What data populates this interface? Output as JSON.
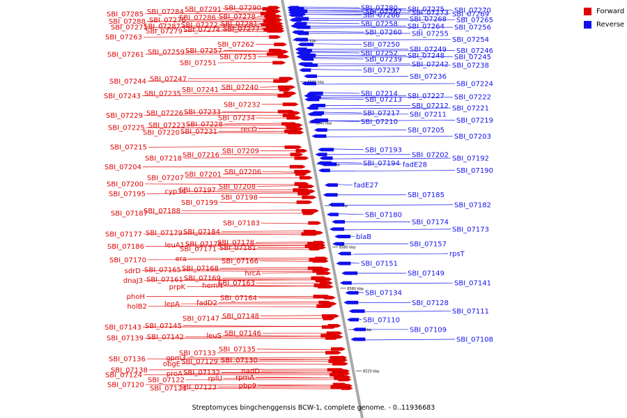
{
  "caption": "Streptomyces bingchenggensis BCW-1, complete genome. - 0..11936683",
  "legend": [
    {
      "label": "Forward",
      "color": "#e00000"
    },
    {
      "label": "Reverse",
      "color": "#1010ee"
    }
  ],
  "colors": {
    "forward": "#e00000",
    "reverse": "#1010ee",
    "axis": "#a8a8a8",
    "text": "#000000"
  },
  "scale_ticks": [
    "8680 kbp",
    "8660 kbp",
    "8640 kbp",
    "8620 kbp",
    "8600 kbp",
    "8580 kbp",
    "8560 kbp",
    "8540 kbp",
    "8520 kbp"
  ],
  "forward_genes": [
    [
      "SBI_07290",
      4
    ],
    [
      "SBI_07291",
      5
    ],
    [
      "SBI_07284",
      7
    ],
    [
      "SBI_07285",
      9
    ],
    [
      "SBI_07278",
      11
    ],
    [
      "SBI_07286",
      12
    ],
    [
      "SBI_07276",
      14
    ],
    [
      "SBI_07288",
      15
    ],
    [
      "SBI_07281",
      17
    ],
    [
      "SBI_07272",
      18
    ],
    [
      "SBI_07287",
      19
    ],
    [
      "SBI_07271",
      20
    ],
    [
      "SBI_07277",
      21
    ],
    [
      "SBI_07274",
      22
    ],
    [
      "SBI_07279",
      23
    ],
    [
      "SBI_07263",
      28
    ],
    [
      "SBI_07262",
      34
    ],
    [
      "SBI_07257",
      39
    ],
    [
      "SBI_07259",
      40
    ],
    [
      "SBI_07261",
      42
    ],
    [
      "SBI_07253",
      44
    ],
    [
      "SBI_07251",
      49
    ],
    [
      "SBI_07247",
      62
    ],
    [
      "SBI_07244",
      64
    ],
    [
      "SBI_07240",
      69
    ],
    [
      "SBI_07241",
      71
    ],
    [
      "SBI_07235",
      74
    ],
    [
      "SBI_07243",
      76
    ],
    [
      "SBI_07232",
      83
    ],
    [
      "SBI_07233",
      89
    ],
    [
      "SBI_07226",
      90
    ],
    [
      "SBI_07229",
      92
    ],
    [
      "SBI_07234",
      94
    ],
    [
      "SBI_07228",
      99
    ],
    [
      "SBI_07223",
      100
    ],
    [
      "SBI_07225",
      102
    ],
    [
      "recO",
      103
    ],
    [
      "SBI_07231",
      105
    ],
    [
      "SBI_07220",
      106
    ],
    [
      "SBI_07215",
      118
    ],
    [
      "SBI_07209",
      121
    ],
    [
      "SBI_07216",
      124
    ],
    [
      "SBI_07218",
      127
    ],
    [
      "SBI_07204",
      134
    ],
    [
      "SBI_07206",
      138
    ],
    [
      "SBI_07201",
      140
    ],
    [
      "SBI_07207",
      143
    ],
    [
      "SBI_07200",
      148
    ],
    [
      "SBI_07208",
      150
    ],
    [
      "SBI_07197",
      153
    ],
    [
      "cyp34",
      154
    ],
    [
      "SBI_07195",
      156
    ],
    [
      "SBI_07198",
      159
    ],
    [
      "SBI_07199",
      163
    ],
    [
      "SBI_07188",
      170
    ],
    [
      "SBI_07187",
      172
    ],
    [
      "SBI_07183",
      180
    ],
    [
      "SBI_07184",
      187
    ],
    [
      "SBI_07179",
      188
    ],
    [
      "SBI_07177",
      189
    ],
    [
      "SBI_07178",
      196
    ],
    [
      "SBI_07176",
      197
    ],
    [
      "leuA1",
      198
    ],
    [
      "SBI_07186",
      199
    ],
    [
      "SBI_07181",
      200
    ],
    [
      "SBI_07171",
      201
    ],
    [
      "era",
      209
    ],
    [
      "SBI_07170",
      210
    ],
    [
      "SBI_07166",
      211
    ],
    [
      "SBI_07168",
      217
    ],
    [
      "SBI_07165",
      218
    ],
    [
      "sdrD",
      219
    ],
    [
      "hrcA",
      221
    ],
    [
      "SBI_07169",
      225
    ],
    [
      "SBI_07161",
      226
    ],
    [
      "dnaJ3",
      227
    ],
    [
      "SBI_07163",
      229
    ],
    [
      "hemN",
      231
    ],
    [
      "prpK",
      232
    ],
    [
      "phoH",
      240
    ],
    [
      "SBI_07164",
      241
    ],
    [
      "fadD2",
      245
    ],
    [
      "lepA",
      246
    ],
    [
      "holB2",
      248
    ],
    [
      "SBI_07148",
      256
    ],
    [
      "SBI_07147",
      258
    ],
    [
      "SBI_07145",
      264
    ],
    [
      "SBI_07143",
      265
    ],
    [
      "SBI_07146",
      270
    ],
    [
      "leuS",
      272
    ],
    [
      "SBI_07142",
      273
    ],
    [
      "SBI_07139",
      274
    ],
    [
      "SBI_07135",
      283
    ],
    [
      "SBI_07133",
      286
    ],
    [
      "gpm3",
      290
    ],
    [
      "SBI_07136",
      291
    ],
    [
      "SBI_07130",
      292
    ],
    [
      "SBI_07129",
      293
    ],
    [
      "obgE",
      295
    ],
    [
      "SBI_07138",
      300
    ],
    [
      "nadD",
      301
    ],
    [
      "SBI_07132",
      302
    ],
    [
      "proA",
      303
    ],
    [
      "SBI_07124",
      304
    ],
    [
      "rpmA",
      306
    ],
    [
      "rplU",
      307
    ],
    [
      "SBI_07122",
      308
    ],
    [
      "SBI_07120",
      312
    ],
    [
      "pbp9",
      313
    ],
    [
      "SBI_07123",
      314
    ],
    [
      "SBI_07121",
      315
    ]
  ],
  "reverse_genes": [
    [
      "SBI_07280",
      4
    ],
    [
      "SBI_07275",
      5
    ],
    [
      "SBI_07270",
      6
    ],
    [
      "SBI_07267",
      7
    ],
    [
      "SBI_07273",
      8
    ],
    [
      "SBI_07269",
      9
    ],
    [
      "SBI_07266",
      10
    ],
    [
      "SBI_07268",
      13
    ],
    [
      "SBI_07265",
      14
    ],
    [
      "SBI_07258",
      17
    ],
    [
      "SBI_07264",
      19
    ],
    [
      "SBI_07256",
      20
    ],
    [
      "SBI_07260",
      24
    ],
    [
      "SBI_07255",
      25
    ],
    [
      "SBI_07254",
      30
    ],
    [
      "SBI_07250",
      34
    ],
    [
      "SBI_07249",
      38
    ],
    [
      "SBI_07246",
      39
    ],
    [
      "SBI_07252",
      41
    ],
    [
      "SBI_07248",
      43
    ],
    [
      "SBI_07245",
      44
    ],
    [
      "SBI_07239",
      46
    ],
    [
      "SBI_07242",
      50
    ],
    [
      "SBI_07238",
      51
    ],
    [
      "SBI_07237",
      55
    ],
    [
      "SBI_07236",
      60
    ],
    [
      "SBI_07224",
      66
    ],
    [
      "SBI_07214",
      74
    ],
    [
      "SBI_07227",
      76
    ],
    [
      "SBI_07222",
      77
    ],
    [
      "SBI_07213",
      79
    ],
    [
      "SBI_07212",
      84
    ],
    [
      "SBI_07221",
      86
    ],
    [
      "SBI_07217",
      90
    ],
    [
      "SBI_07211",
      91
    ],
    [
      "SBI_07219",
      96
    ],
    [
      "SBI_07210",
      97
    ],
    [
      "SBI_07205",
      104
    ],
    [
      "SBI_07203",
      109
    ],
    [
      "SBI_07193",
      120
    ],
    [
      "SBI_07202",
      124
    ],
    [
      "SBI_07192",
      127
    ],
    [
      "SBI_07194",
      131
    ],
    [
      "fadE28",
      132
    ],
    [
      "SBI_07190",
      137
    ],
    [
      "fadE27",
      149
    ],
    [
      "SBI_07185",
      157
    ],
    [
      "SBI_07182",
      165
    ],
    [
      "SBI_07180",
      173
    ],
    [
      "SBI_07174",
      179
    ],
    [
      "SBI_07173",
      185
    ],
    [
      "blaB",
      191
    ],
    [
      "SBI_07157",
      197
    ],
    [
      "rpsT",
      205
    ],
    [
      "SBI_07151",
      213
    ],
    [
      "SBI_07149",
      221
    ],
    [
      "SBI_07141",
      229
    ],
    [
      "SBI_07134",
      237
    ],
    [
      "SBI_07128",
      245
    ],
    [
      "SBI_07111",
      252
    ],
    [
      "SBI_07110",
      259
    ],
    [
      "SBI_07109",
      267
    ],
    [
      "SBI_07108",
      275
    ]
  ]
}
